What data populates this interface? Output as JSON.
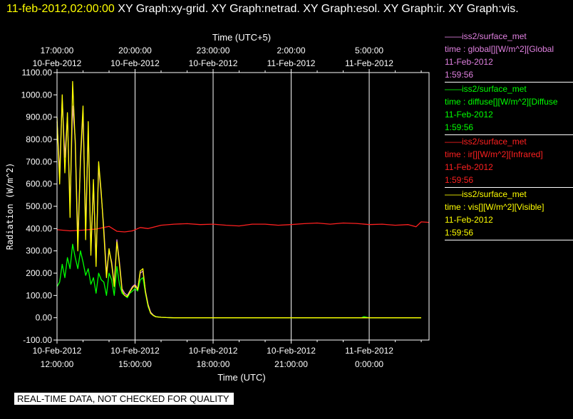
{
  "header": {
    "timestamp": "11-feb-2012,02:00:00",
    "graphs": "  XY Graph:xy-grid.  XY Graph:netrad.  XY Graph:esol.  XY Graph:ir.  XY Graph:vis."
  },
  "legend": [
    {
      "source": "——iss2/surface_met",
      "field": "time : global[][W/m^2][Global",
      "date": "11-Feb-2012",
      "time": "1:59:56",
      "color": "#e080e0"
    },
    {
      "source": "——iss2/surface_met",
      "field": "time : diffuse[][W/m^2][Diffuse",
      "date": "11-Feb-2012",
      "time": "1:59:56",
      "color": "#00ff00"
    },
    {
      "source": "——iss2/surface_met",
      "field": "time : ir[][W/m^2][Infrared]",
      "date": "11-Feb-2012",
      "time": "1:59:56",
      "color": "#ff2020"
    },
    {
      "source": "——iss2/surface_met",
      "field": "time : vis[][W/m^2][Visible]",
      "date": "11-Feb-2012",
      "time": "1:59:56",
      "color": "#ffff00"
    }
  ],
  "footer": {
    "qc_note": "REAL-TIME DATA, NOT CHECKED FOR QUALITY"
  },
  "chart_data": {
    "type": "line",
    "xlabel": "Time (UTC)",
    "top_xlabel": "Time (UTC+5)",
    "ylabel": "Radiation (W/m^2)",
    "x_unit": "hours UTC from 10-Feb-2012 12:00",
    "xlim": [
      0,
      14.3
    ],
    "ylim": [
      -100,
      1100
    ],
    "yticks": [
      -100,
      0,
      100,
      200,
      300,
      400,
      500,
      600,
      700,
      800,
      900,
      1000,
      1100
    ],
    "ytick_labels": [
      "-100.00",
      "0.00",
      "100.00",
      "200.00",
      "300.00",
      "400.00",
      "500.00",
      "600.00",
      "700.00",
      "800.00",
      "900.00",
      "1000.00",
      "1100.00"
    ],
    "bottom_ticks": [
      {
        "x": 0,
        "date": "10-Feb-2012",
        "time": "12:00:00"
      },
      {
        "x": 3,
        "date": "10-Feb-2012",
        "time": "15:00:00"
      },
      {
        "x": 6,
        "date": "10-Feb-2012",
        "time": "18:00:00"
      },
      {
        "x": 9,
        "date": "10-Feb-2012",
        "time": "21:00:00"
      },
      {
        "x": 12,
        "date": "11-Feb-2012",
        "time": "0:00:00"
      }
    ],
    "top_ticks": [
      {
        "x": 0,
        "time": "17:00:00",
        "date": "10-Feb-2012"
      },
      {
        "x": 3,
        "time": "20:00:00",
        "date": "10-Feb-2012"
      },
      {
        "x": 6,
        "time": "23:00:00",
        "date": "10-Feb-2012"
      },
      {
        "x": 9,
        "time": "2:00:00",
        "date": "11-Feb-2012"
      },
      {
        "x": 12,
        "time": "5:00:00",
        "date": "11-Feb-2012"
      }
    ],
    "grid": true,
    "series": [
      {
        "name": "global",
        "color": "#e080e0",
        "x": [
          0,
          0.1,
          0.2,
          0.3,
          0.4,
          0.5,
          0.6,
          0.7,
          0.8,
          0.9,
          1.0,
          1.1,
          1.2,
          1.3,
          1.4,
          1.5,
          1.6,
          1.7,
          1.8,
          1.9,
          2.0,
          2.1,
          2.2,
          2.3,
          2.4,
          2.5,
          2.6,
          2.7,
          2.8,
          2.9,
          3.0,
          3.1,
          3.2,
          3.3,
          3.4,
          3.5,
          3.6,
          3.7,
          3.8,
          4.0,
          4.2,
          4.5,
          5.0,
          6.0,
          8.0,
          10.0,
          12.0,
          14.0
        ],
        "values": [
          880,
          650,
          980,
          720,
          900,
          500,
          950,
          800,
          350,
          700,
          920,
          400,
          850,
          300,
          600,
          250,
          680,
          550,
          400,
          200,
          300,
          250,
          150,
          350,
          250,
          130,
          110,
          100,
          120,
          140,
          150,
          130,
          200,
          210,
          120,
          60,
          25,
          12,
          5,
          2,
          1,
          0,
          0,
          0,
          0,
          0,
          0,
          0
        ]
      },
      {
        "name": "diffuse",
        "color": "#00ff00",
        "x": [
          0,
          0.1,
          0.2,
          0.3,
          0.4,
          0.5,
          0.6,
          0.7,
          0.8,
          0.9,
          1.0,
          1.1,
          1.2,
          1.3,
          1.4,
          1.5,
          1.6,
          1.7,
          1.8,
          1.9,
          2.0,
          2.1,
          2.2,
          2.3,
          2.4,
          2.5,
          2.6,
          2.7,
          2.8,
          2.9,
          3.0,
          3.1,
          3.2,
          3.3,
          3.4,
          3.5,
          3.6,
          3.7,
          3.8,
          4.0,
          4.2,
          4.5,
          5.0,
          6.0,
          8.0,
          10.0,
          11.7,
          11.8,
          12.0,
          14.0
        ],
        "values": [
          140,
          160,
          240,
          180,
          270,
          220,
          330,
          270,
          220,
          300,
          250,
          190,
          220,
          150,
          180,
          110,
          200,
          170,
          160,
          100,
          200,
          170,
          100,
          230,
          150,
          110,
          100,
          90,
          110,
          120,
          130,
          120,
          170,
          180,
          110,
          50,
          20,
          10,
          5,
          2,
          1,
          0,
          0,
          0,
          0,
          0,
          0,
          5,
          0,
          0
        ]
      },
      {
        "name": "ir",
        "color": "#ff2020",
        "x": [
          0,
          0.5,
          1.0,
          1.5,
          2.0,
          2.3,
          2.6,
          2.9,
          3.2,
          3.5,
          4.0,
          4.5,
          5.0,
          5.5,
          6.0,
          6.5,
          7.0,
          7.5,
          8.0,
          8.5,
          9.0,
          9.5,
          10.0,
          10.5,
          11.0,
          11.5,
          12.0,
          12.5,
          13.0,
          13.5,
          13.8,
          14.0,
          14.3
        ],
        "values": [
          395,
          390,
          393,
          398,
          410,
          388,
          385,
          390,
          405,
          400,
          415,
          420,
          422,
          418,
          420,
          415,
          412,
          420,
          420,
          415,
          418,
          422,
          425,
          420,
          425,
          423,
          418,
          420,
          415,
          418,
          408,
          430,
          428
        ]
      },
      {
        "name": "vis",
        "color": "#ffff00",
        "x": [
          0,
          0.1,
          0.2,
          0.3,
          0.4,
          0.5,
          0.6,
          0.7,
          0.8,
          0.9,
          1.0,
          1.1,
          1.2,
          1.3,
          1.4,
          1.5,
          1.6,
          1.7,
          1.8,
          1.9,
          2.0,
          2.1,
          2.2,
          2.3,
          2.4,
          2.5,
          2.6,
          2.7,
          2.8,
          2.9,
          3.0,
          3.1,
          3.2,
          3.3,
          3.4,
          3.5,
          3.6,
          3.7,
          3.8,
          4.0,
          4.2,
          4.5,
          5.0,
          6.0,
          8.0,
          10.0,
          12.0,
          14.0
        ],
        "values": [
          900,
          600,
          1000,
          650,
          920,
          450,
          1060,
          780,
          300,
          720,
          950,
          350,
          880,
          280,
          620,
          230,
          700,
          560,
          380,
          180,
          310,
          240,
          140,
          340,
          240,
          120,
          100,
          95,
          115,
          135,
          145,
          125,
          210,
          220,
          115,
          55,
          20,
          10,
          4,
          2,
          1,
          0,
          0,
          0,
          0,
          0,
          0,
          0
        ]
      }
    ]
  }
}
